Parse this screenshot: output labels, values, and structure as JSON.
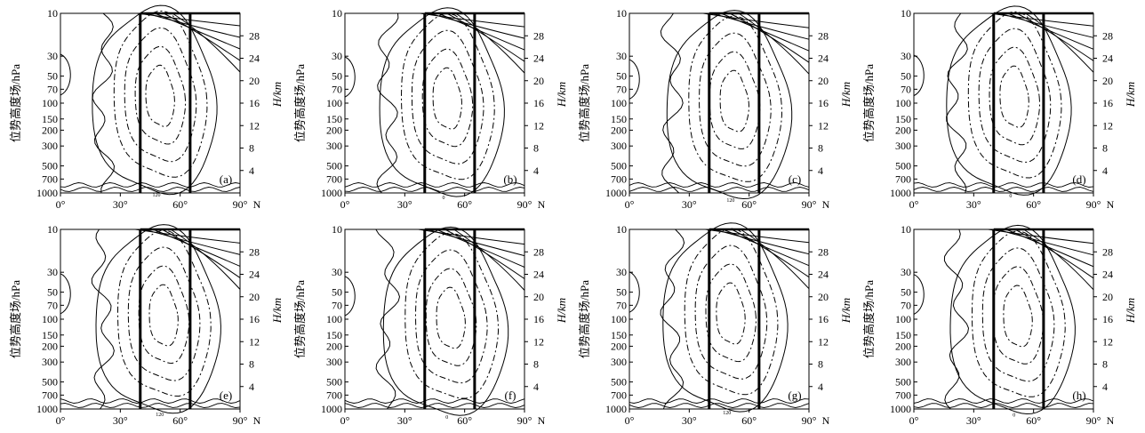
{
  "chart_data": {
    "type": "contour",
    "panel_labels": [
      "(a)",
      "(b)",
      "(c)",
      "(d)",
      "(e)",
      "(f)",
      "(g)",
      "(h)"
    ],
    "x_ticks": [
      0,
      30,
      60,
      90
    ],
    "x_tick_labels": [
      "0°",
      "30°",
      "60°",
      "90°"
    ],
    "x_unit": "N",
    "xlim": [
      0,
      90
    ],
    "y_left_label": "位势高度场/hPa",
    "y_left_ticks": [
      10,
      30,
      50,
      70,
      100,
      150,
      200,
      300,
      500,
      700,
      1000
    ],
    "y_left_tick_labels": [
      "10",
      "30",
      "50",
      "70",
      "100",
      "150",
      "200",
      "300",
      "500",
      "700",
      "1000"
    ],
    "y_left_scale": "log",
    "y_left_lim": [
      1000,
      10
    ],
    "y_right_label": "H/km",
    "y_right_ticks": [
      4,
      8,
      12,
      16,
      20,
      24,
      28
    ],
    "y_right_tick_labels": [
      "4",
      "8",
      "12",
      "16",
      "20",
      "24",
      "28"
    ],
    "vertical_lines_lat": [
      40,
      65
    ],
    "contour_small_labels": [
      "0",
      "120"
    ],
    "grid": false,
    "legend": "none"
  }
}
